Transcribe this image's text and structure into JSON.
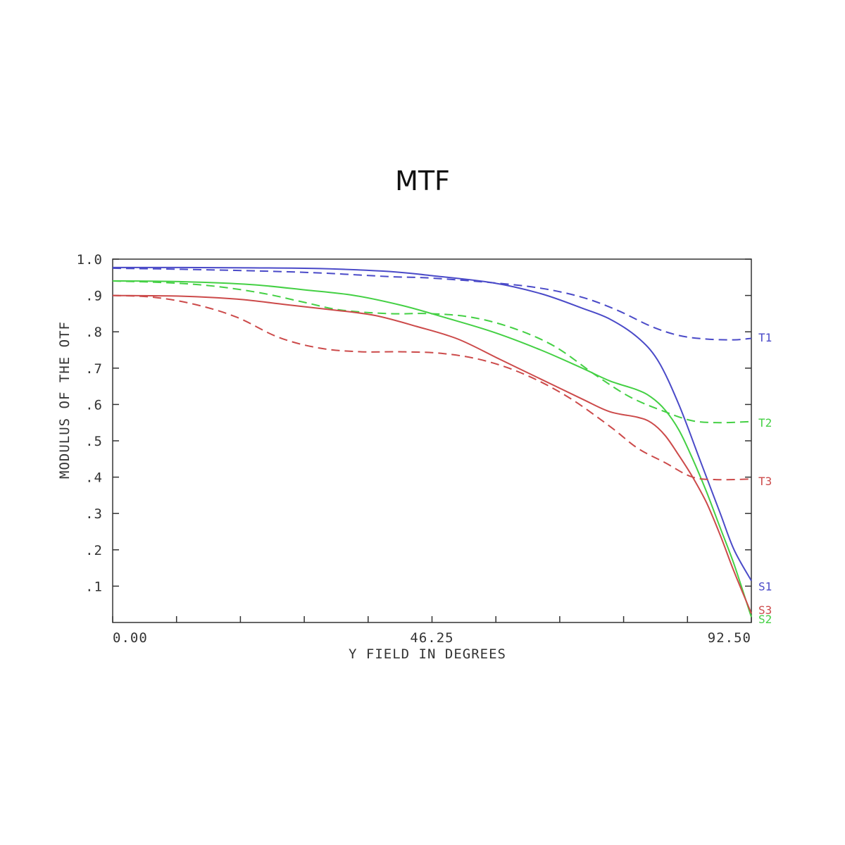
{
  "chart_data": {
    "type": "line",
    "title": "MTF",
    "xlabel": "Y FIELD IN DEGREES",
    "ylabel": "MODULUS OF THE OTF",
    "xlim": [
      0,
      92.5
    ],
    "ylim": [
      0,
      1.0
    ],
    "x_tick_labels": [
      {
        "value": 0,
        "label": "0.00"
      },
      {
        "value": 46.25,
        "label": "46.25"
      },
      {
        "value": 92.5,
        "label": "92.50"
      }
    ],
    "y_tick_labels": [
      {
        "value": 1.0,
        "label": "1.0"
      },
      {
        "value": 0.9,
        "label": ".9"
      },
      {
        "value": 0.8,
        "label": ".8"
      },
      {
        "value": 0.7,
        "label": ".7"
      },
      {
        "value": 0.6,
        "label": ".6"
      },
      {
        "value": 0.5,
        "label": ".5"
      },
      {
        "value": 0.4,
        "label": ".4"
      },
      {
        "value": 0.3,
        "label": ".3"
      },
      {
        "value": 0.2,
        "label": ".2"
      },
      {
        "value": 0.1,
        "label": ".1"
      }
    ],
    "x_minor_ticks": [
      0,
      9.25,
      18.5,
      27.75,
      37,
      46.25,
      55.5,
      64.75,
      74,
      83.25,
      92.5
    ],
    "grid": false,
    "series": [
      {
        "name": "T1",
        "color": "#4a4ac8",
        "dash": true,
        "points": [
          [
            0,
            0.975
          ],
          [
            10,
            0.972
          ],
          [
            20,
            0.968
          ],
          [
            30,
            0.962
          ],
          [
            40,
            0.952
          ],
          [
            46,
            0.948
          ],
          [
            55,
            0.935
          ],
          [
            62,
            0.92
          ],
          [
            68,
            0.895
          ],
          [
            73,
            0.86
          ],
          [
            78,
            0.815
          ],
          [
            82,
            0.79
          ],
          [
            86,
            0.78
          ],
          [
            90,
            0.778
          ],
          [
            92.5,
            0.782
          ]
        ]
      },
      {
        "name": "S1",
        "color": "#4a4ac8",
        "dash": false,
        "points": [
          [
            0,
            0.977
          ],
          [
            10,
            0.977
          ],
          [
            20,
            0.976
          ],
          [
            30,
            0.974
          ],
          [
            40,
            0.966
          ],
          [
            46,
            0.955
          ],
          [
            55,
            0.935
          ],
          [
            62,
            0.905
          ],
          [
            68,
            0.865
          ],
          [
            72,
            0.835
          ],
          [
            76,
            0.785
          ],
          [
            79,
            0.72
          ],
          [
            82,
            0.6
          ],
          [
            85,
            0.45
          ],
          [
            88,
            0.3
          ],
          [
            90,
            0.2
          ],
          [
            92.5,
            0.115
          ]
        ]
      },
      {
        "name": "T2",
        "color": "#44d044",
        "dash": true,
        "points": [
          [
            0,
            0.94
          ],
          [
            8,
            0.935
          ],
          [
            15,
            0.925
          ],
          [
            22,
            0.905
          ],
          [
            28,
            0.88
          ],
          [
            33,
            0.86
          ],
          [
            40,
            0.85
          ],
          [
            46,
            0.85
          ],
          [
            52,
            0.84
          ],
          [
            58,
            0.81
          ],
          [
            64,
            0.76
          ],
          [
            70,
            0.68
          ],
          [
            75,
            0.62
          ],
          [
            80,
            0.58
          ],
          [
            84,
            0.555
          ],
          [
            88,
            0.55
          ],
          [
            92.5,
            0.553
          ]
        ]
      },
      {
        "name": "S2",
        "color": "#44d044",
        "dash": false,
        "points": [
          [
            0,
            0.94
          ],
          [
            10,
            0.938
          ],
          [
            20,
            0.93
          ],
          [
            28,
            0.915
          ],
          [
            35,
            0.9
          ],
          [
            42,
            0.872
          ],
          [
            48,
            0.84
          ],
          [
            55,
            0.8
          ],
          [
            62,
            0.75
          ],
          [
            68,
            0.7
          ],
          [
            72,
            0.665
          ],
          [
            76,
            0.64
          ],
          [
            78,
            0.62
          ],
          [
            80,
            0.585
          ],
          [
            82,
            0.53
          ],
          [
            84,
            0.45
          ],
          [
            86,
            0.36
          ],
          [
            88,
            0.26
          ],
          [
            90,
            0.16
          ],
          [
            92.5,
            0.015
          ]
        ]
      },
      {
        "name": "T3",
        "color": "#cc4a4a",
        "dash": true,
        "points": [
          [
            0,
            0.9
          ],
          [
            6,
            0.895
          ],
          [
            12,
            0.875
          ],
          [
            18,
            0.84
          ],
          [
            24,
            0.785
          ],
          [
            30,
            0.755
          ],
          [
            36,
            0.745
          ],
          [
            42,
            0.745
          ],
          [
            48,
            0.74
          ],
          [
            54,
            0.72
          ],
          [
            60,
            0.68
          ],
          [
            66,
            0.62
          ],
          [
            72,
            0.54
          ],
          [
            76,
            0.48
          ],
          [
            80,
            0.44
          ],
          [
            84,
            0.4
          ],
          [
            88,
            0.393
          ],
          [
            92.5,
            0.395
          ]
        ]
      },
      {
        "name": "S3",
        "color": "#cc4a4a",
        "dash": false,
        "points": [
          [
            0,
            0.9
          ],
          [
            10,
            0.898
          ],
          [
            18,
            0.89
          ],
          [
            25,
            0.875
          ],
          [
            32,
            0.86
          ],
          [
            38,
            0.845
          ],
          [
            44,
            0.815
          ],
          [
            50,
            0.78
          ],
          [
            56,
            0.725
          ],
          [
            62,
            0.67
          ],
          [
            68,
            0.615
          ],
          [
            72,
            0.58
          ],
          [
            76,
            0.565
          ],
          [
            78,
            0.55
          ],
          [
            80,
            0.515
          ],
          [
            82,
            0.46
          ],
          [
            84,
            0.4
          ],
          [
            86,
            0.33
          ],
          [
            88,
            0.24
          ],
          [
            90,
            0.14
          ],
          [
            92.5,
            0.025
          ]
        ]
      }
    ],
    "series_labels": [
      {
        "name": "T1",
        "text": "T1",
        "y": 0.785,
        "color": "#4a4ac8"
      },
      {
        "name": "T2",
        "text": "T2",
        "y": 0.55,
        "color": "#44d044"
      },
      {
        "name": "T3",
        "text": "T3",
        "y": 0.39,
        "color": "#cc4a4a"
      },
      {
        "name": "S1",
        "text": "S1",
        "y": 0.1,
        "color": "#4a4ac8"
      },
      {
        "name": "S3",
        "text": "S3",
        "y": 0.035,
        "color": "#cc4a4a"
      },
      {
        "name": "S2",
        "text": "S2",
        "y": 0.01,
        "color": "#44d044"
      }
    ]
  }
}
